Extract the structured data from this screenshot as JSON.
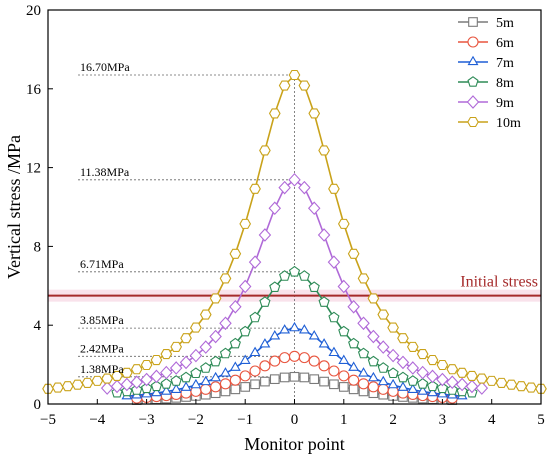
{
  "chart_data": {
    "type": "line",
    "xlabel": "Monitor point",
    "ylabel": "Vertical stress /MPa",
    "xlim": [
      -5,
      5
    ],
    "ylim": [
      0,
      20
    ],
    "xticks": [
      -5,
      -4,
      -3,
      -2,
      -1,
      0,
      1,
      2,
      3,
      4,
      5
    ],
    "yticks": [
      0,
      4,
      8,
      12,
      16,
      20
    ],
    "grid": false,
    "legend_position": "top-right",
    "initial_stress": {
      "label": "Initial stress",
      "value": 5.5,
      "color": "#a52a2a"
    },
    "peak_annotations": [
      {
        "text": "16.70MPa",
        "value": 16.7
      },
      {
        "text": "11.38MPa",
        "value": 11.38
      },
      {
        "text": "6.71MPa",
        "value": 6.71
      },
      {
        "text": "3.85MPa",
        "value": 3.85
      },
      {
        "text": "2.42MPa",
        "value": 2.42
      },
      {
        "text": "1.38MPa",
        "value": 1.38
      }
    ],
    "series": [
      {
        "name": "5m",
        "color": "#7a7a7a",
        "marker": "square",
        "peak": 1.38,
        "half_width": 1.3,
        "x_range": [
          -3.2,
          3.2
        ]
      },
      {
        "name": "6m",
        "color": "#e8553f",
        "marker": "circle",
        "peak": 2.42,
        "half_width": 1.2,
        "x_range": [
          -3.2,
          3.2
        ]
      },
      {
        "name": "7m",
        "color": "#1f5fd6",
        "marker": "triangle",
        "peak": 3.85,
        "half_width": 1.15,
        "x_range": [
          -3.4,
          3.4
        ]
      },
      {
        "name": "8m",
        "color": "#2e8b57",
        "marker": "pentagon",
        "peak": 6.71,
        "half_width": 1.1,
        "x_range": [
          -3.6,
          3.6
        ]
      },
      {
        "name": "9m",
        "color": "#b06ad8",
        "marker": "diamond",
        "peak": 11.38,
        "half_width": 1.05,
        "x_range": [
          -3.8,
          3.8
        ]
      },
      {
        "name": "10m",
        "color": "#c9a21a",
        "marker": "hexagon",
        "peak": 16.7,
        "half_width": 1.1,
        "x_range": [
          -5,
          5
        ]
      }
    ]
  }
}
